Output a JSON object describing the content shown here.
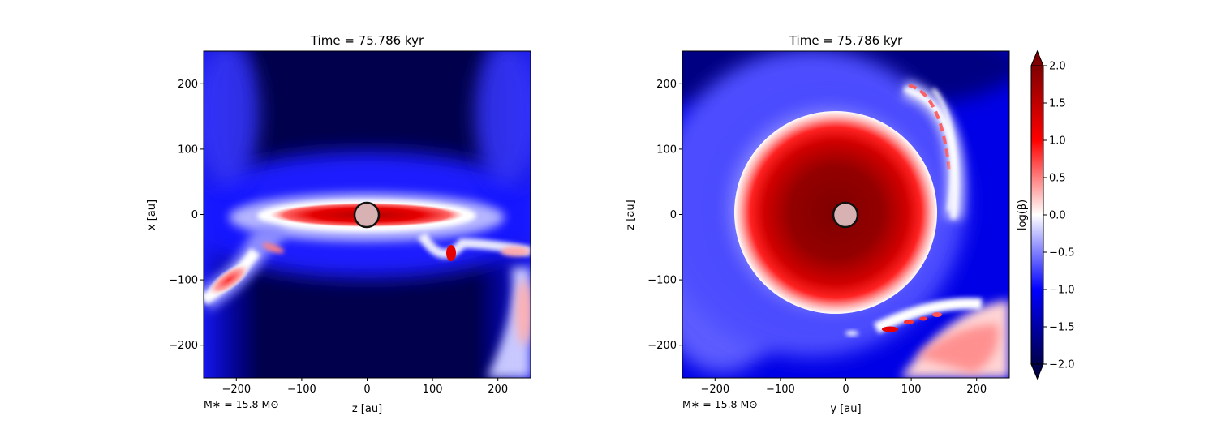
{
  "colormap": [
    "#00004c",
    "#0000ff",
    "#ffffff",
    "#ff0000",
    "#7f0000"
  ],
  "star_color": "#d8b2b2",
  "chart_data": [
    {
      "type": "heatmap",
      "title": "Time = 75.786 kyr",
      "xlabel": "z [au]",
      "ylabel": "x [au]",
      "xlim": [
        -250,
        250
      ],
      "ylim": [
        -250,
        250
      ],
      "xticks": [
        -200,
        -100,
        0,
        100,
        200
      ],
      "yticks": [
        -200,
        -100,
        0,
        100,
        200
      ],
      "tick_labels": [
        "−200",
        "−100",
        "0",
        "100",
        "200"
      ],
      "annotation": "M$_*$ = 15.8 M$_\\odot$",
      "annotation_text": "M∗ = 15.8 M⊙",
      "star": {
        "x": 0,
        "y": 0,
        "radius_au": 18
      },
      "value_label": "log(β)"
    },
    {
      "type": "heatmap",
      "title": "Time = 75.786 kyr",
      "xlabel": "y [au]",
      "ylabel": "z [au]",
      "xlim": [
        -250,
        250
      ],
      "ylim": [
        -250,
        250
      ],
      "xticks": [
        -200,
        -100,
        0,
        100,
        200
      ],
      "yticks": [
        -200,
        -100,
        0,
        100,
        200
      ],
      "tick_labels": [
        "−200",
        "−100",
        "0",
        "100",
        "200"
      ],
      "annotation_text": "M∗ = 15.8 M⊙",
      "star": {
        "x": 0,
        "y": 0,
        "radius_au": 18
      },
      "value_label": "log(β)"
    }
  ],
  "colorbar": {
    "label": "log(β)",
    "range": [
      -2.0,
      2.0
    ],
    "ticks": [
      2.0,
      1.5,
      1.0,
      0.5,
      0.0,
      -0.5,
      -1.0,
      -1.5,
      -2.0
    ],
    "tick_labels": [
      "2.0",
      "1.5",
      "1.0",
      "0.5",
      "0.0",
      "−0.5",
      "−1.0",
      "−1.5",
      "−2.0"
    ],
    "extend": "both"
  }
}
